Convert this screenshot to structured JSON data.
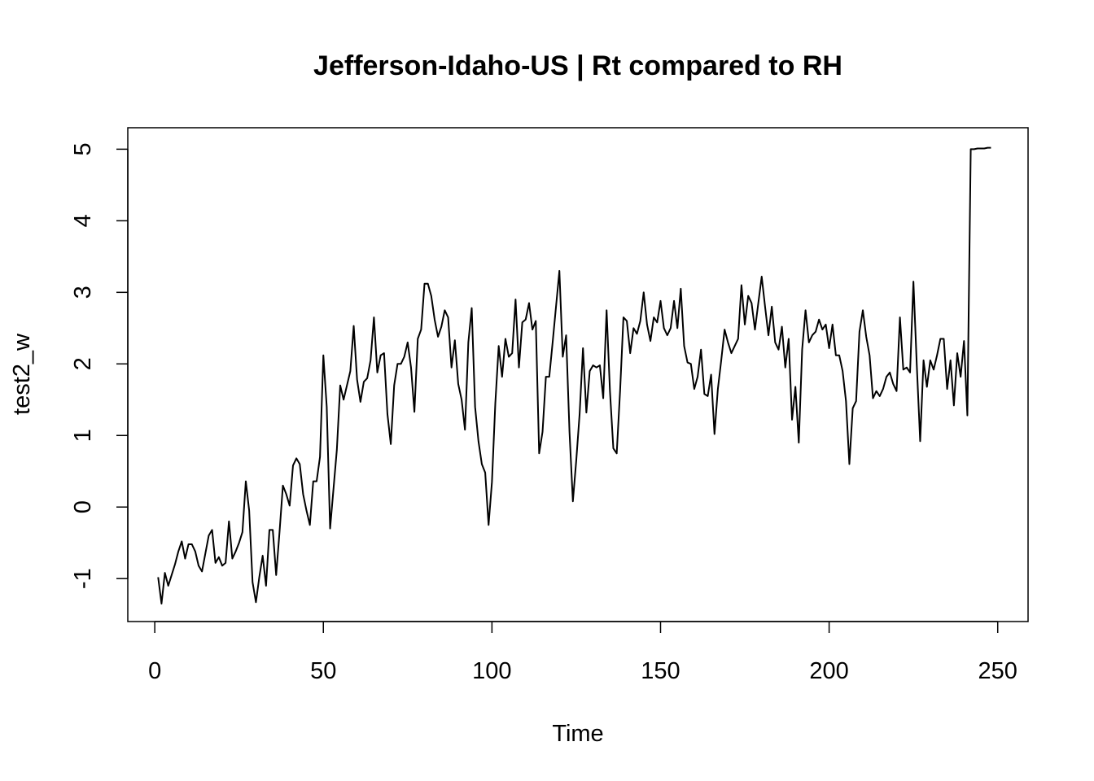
{
  "chart_data": {
    "type": "line",
    "title": "Jefferson-Idaho-US | Rt compared to RH",
    "xlabel": "Time",
    "ylabel": "test2_w",
    "xlim": [
      -8,
      259
    ],
    "ylim": [
      -1.6,
      5.3
    ],
    "x_ticks": [
      0,
      50,
      100,
      150,
      200,
      250
    ],
    "x_tick_labels": [
      "0",
      "50",
      "100",
      "150",
      "200",
      "250"
    ],
    "y_ticks": [
      -1,
      0,
      1,
      2,
      3,
      4,
      5
    ],
    "y_tick_labels": [
      "-1",
      "0",
      "1",
      "2",
      "3",
      "4",
      "5"
    ],
    "grid": false,
    "x_start": 1,
    "series": [
      {
        "values": [
          -0.98,
          -1.35,
          -0.92,
          -1.1,
          -0.95,
          -0.8,
          -0.62,
          -0.48,
          -0.72,
          -0.52,
          -0.52,
          -0.62,
          -0.82,
          -0.9,
          -0.65,
          -0.4,
          -0.32,
          -0.78,
          -0.7,
          -0.82,
          -0.78,
          -0.2,
          -0.72,
          -0.62,
          -0.5,
          -0.35,
          0.36,
          -0.05,
          -1.05,
          -1.33,
          -0.98,
          -0.68,
          -1.1,
          -0.32,
          -0.32,
          -0.95,
          -0.35,
          0.3,
          0.18,
          0.02,
          0.58,
          0.68,
          0.6,
          0.18,
          -0.05,
          -0.25,
          0.36,
          0.36,
          0.7,
          2.12,
          1.4,
          -0.3,
          0.25,
          0.8,
          1.7,
          1.5,
          1.7,
          1.9,
          2.53,
          1.78,
          1.47,
          1.75,
          1.8,
          2.05,
          2.65,
          1.88,
          2.12,
          2.15,
          1.3,
          0.88,
          1.7,
          2.0,
          2.0,
          2.1,
          2.3,
          1.95,
          1.33,
          2.35,
          2.48,
          3.12,
          3.12,
          2.95,
          2.62,
          2.38,
          2.52,
          2.75,
          2.65,
          1.95,
          2.33,
          1.72,
          1.5,
          1.08,
          2.3,
          2.78,
          1.4,
          0.92,
          0.6,
          0.48,
          -0.25,
          0.35,
          1.45,
          2.25,
          1.82,
          2.35,
          2.1,
          2.15,
          2.9,
          1.95,
          2.58,
          2.62,
          2.85,
          2.48,
          2.6,
          0.75,
          1.05,
          1.82,
          1.82,
          2.3,
          2.8,
          3.3,
          2.1,
          2.4,
          1.05,
          0.08,
          0.65,
          1.3,
          2.22,
          1.32,
          1.9,
          1.98,
          1.95,
          1.98,
          1.52,
          2.75,
          1.62,
          0.82,
          0.75,
          1.62,
          2.65,
          2.6,
          2.15,
          2.5,
          2.42,
          2.6,
          3.0,
          2.55,
          2.32,
          2.65,
          2.58,
          2.88,
          2.5,
          2.4,
          2.5,
          2.88,
          2.5,
          3.05,
          2.25,
          2.02,
          2.0,
          1.65,
          1.82,
          2.2,
          1.58,
          1.55,
          1.85,
          1.02,
          1.65,
          2.05,
          2.48,
          2.3,
          2.15,
          2.25,
          2.35,
          3.1,
          2.55,
          2.95,
          2.85,
          2.48,
          2.85,
          3.22,
          2.8,
          2.4,
          2.8,
          2.3,
          2.2,
          2.52,
          1.95,
          2.35,
          1.22,
          1.68,
          0.9,
          2.2,
          2.75,
          2.3,
          2.4,
          2.45,
          2.62,
          2.48,
          2.55,
          2.22,
          2.55,
          2.12,
          2.12,
          1.9,
          1.48,
          0.6,
          1.38,
          1.48,
          2.45,
          2.75,
          2.38,
          2.12,
          1.52,
          1.62,
          1.55,
          1.65,
          1.82,
          1.88,
          1.72,
          1.62,
          2.65,
          1.92,
          1.95,
          1.88,
          3.15,
          1.98,
          0.92,
          2.05,
          1.68,
          2.05,
          1.92,
          2.12,
          2.35,
          2.35,
          1.65,
          2.05,
          1.42,
          2.15,
          1.82,
          2.32,
          1.28,
          5.0,
          5.0,
          5.01,
          5.01,
          5.01,
          5.02,
          5.02
        ]
      }
    ]
  }
}
